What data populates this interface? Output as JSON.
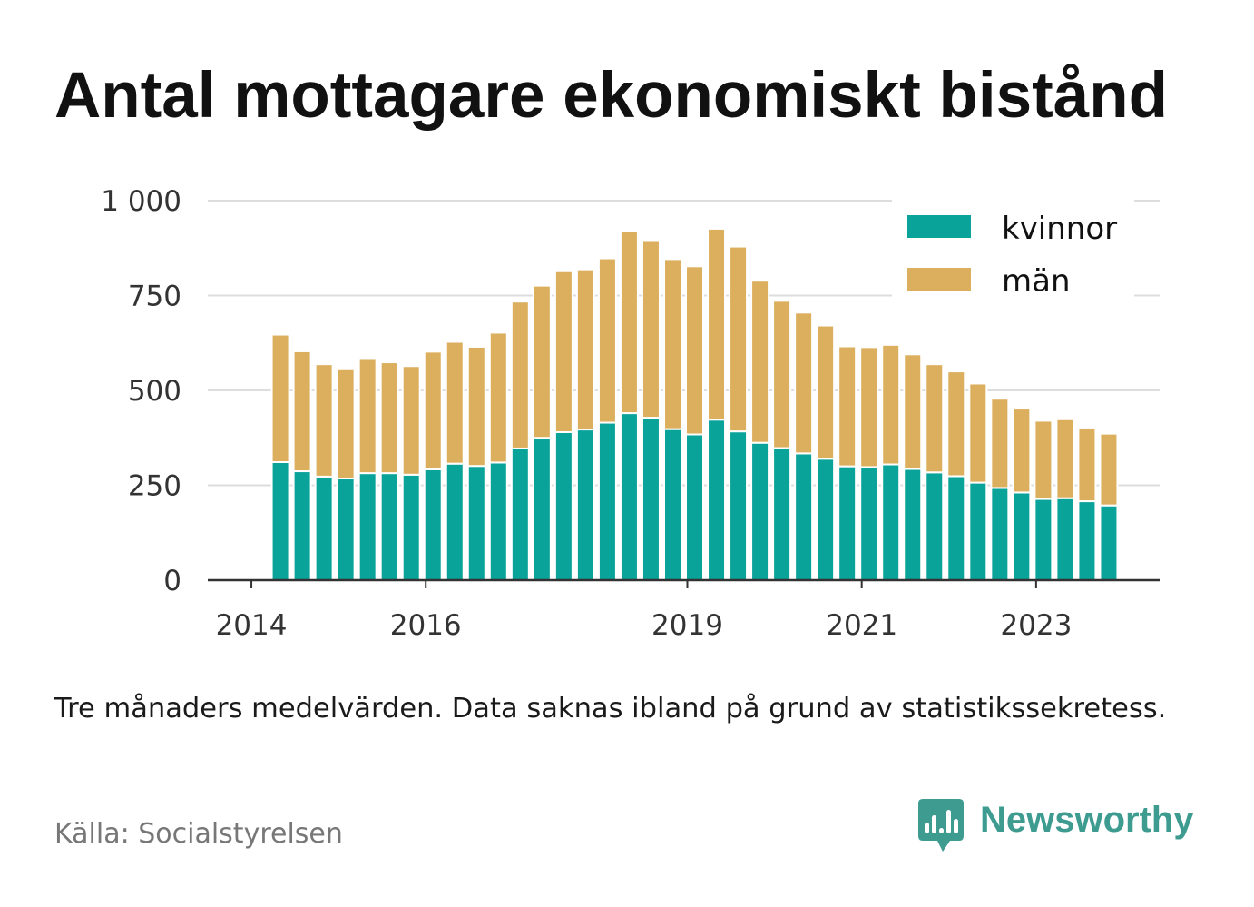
{
  "chart_data": {
    "type": "bar",
    "stacked": true,
    "title": "Antal mottagare ekonomiskt bistånd",
    "note": "Tre månaders medelvärden. Data saknas ibland på grund av statistikssekretess.",
    "source": "Källa: Socialstyrelsen",
    "x": [
      "2014-05",
      "2014-08",
      "2014-11",
      "2015-02",
      "2015-05",
      "2015-08",
      "2015-11",
      "2016-02",
      "2016-05",
      "2016-08",
      "2016-11",
      "2017-02",
      "2017-05",
      "2017-08",
      "2017-11",
      "2018-02",
      "2018-05",
      "2018-08",
      "2018-11",
      "2019-02",
      "2019-05",
      "2019-08",
      "2019-11",
      "2020-02",
      "2020-05",
      "2020-08",
      "2020-11",
      "2021-02",
      "2021-05",
      "2021-08",
      "2021-11",
      "2022-02",
      "2022-05",
      "2022-08",
      "2022-11",
      "2023-02",
      "2023-05",
      "2023-08",
      "2023-11"
    ],
    "x_ticks": [
      "2014",
      "2016",
      "2019",
      "2021",
      "2023"
    ],
    "xlim": [
      "2013-07",
      "2024-06"
    ],
    "y_ticks": [
      0,
      250,
      500,
      750,
      1000
    ],
    "y_tick_labels": [
      "0",
      "250",
      "500",
      "750",
      "1 000"
    ],
    "ylim": [
      0,
      1000
    ],
    "grid": true,
    "legend": "top-right",
    "series": [
      {
        "name": "kvinnor",
        "color": "#0aa39a",
        "values": [
          311,
          287,
          273,
          268,
          282,
          282,
          278,
          292,
          307,
          301,
          310,
          347,
          375,
          390,
          397,
          415,
          440,
          428,
          398,
          384,
          423,
          392,
          362,
          348,
          334,
          320,
          300,
          298,
          305,
          293,
          284,
          274,
          257,
          243,
          231,
          214,
          216,
          208,
          197
        ]
      },
      {
        "name": "män",
        "color": "#dcaf5e",
        "values": [
          336,
          316,
          296,
          290,
          303,
          292,
          286,
          310,
          321,
          314,
          342,
          387,
          401,
          424,
          422,
          433,
          481,
          468,
          448,
          443,
          503,
          487,
          427,
          388,
          371,
          351,
          316,
          316,
          315,
          302,
          285,
          276,
          261,
          235,
          221,
          206,
          208,
          194,
          189
        ]
      }
    ]
  },
  "brand": {
    "name": "Newsworthy",
    "color": "#3d9b8f",
    "icon": "newsworthy-logo-icon"
  }
}
